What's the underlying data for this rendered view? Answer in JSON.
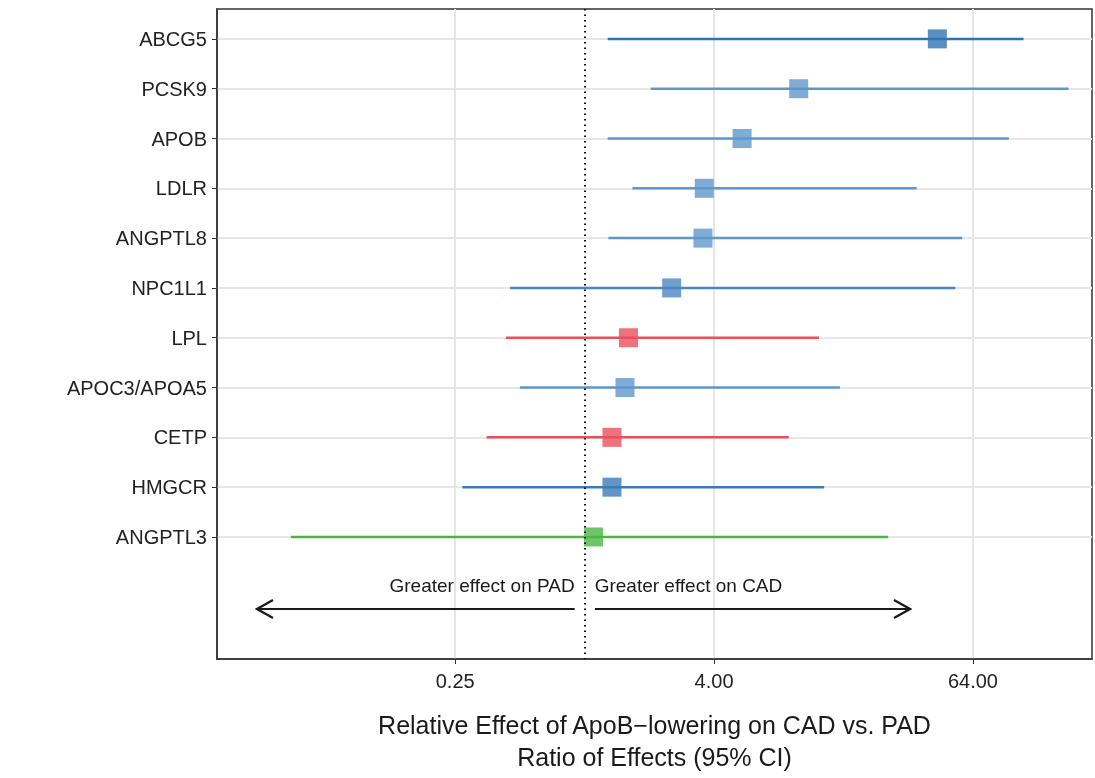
{
  "chart_data": {
    "type": "scatter",
    "orientation": "horizontal",
    "xlabel": "Relative Effect of ApoB−lowering on CAD vs. PAD\nRatio of Effects (95% CI)",
    "categories": [
      "ABCG5",
      "PCSK9",
      "APOB",
      "LDLR",
      "ANGPTL8",
      "NPC1L1",
      "LPL",
      "APOC3/APOA5",
      "CETP",
      "HMGCR",
      "ANGPTL3"
    ],
    "values": [
      43.7,
      9.9,
      5.4,
      3.6,
      3.55,
      2.54,
      1.6,
      1.54,
      1.34,
      1.34,
      1.1
    ],
    "errors": [
      [
        1.28,
        110
      ],
      [
        2.03,
        178
      ],
      [
        1.28,
        94
      ],
      [
        1.67,
        35
      ],
      [
        1.29,
        57
      ],
      [
        0.45,
        53
      ],
      [
        0.43,
        12.3
      ],
      [
        0.5,
        15.4
      ],
      [
        0.35,
        8.9
      ],
      [
        0.27,
        13
      ],
      [
        0.043,
        25.8
      ]
    ],
    "colors": [
      "#2f74b5",
      "#5e97cc",
      "#5e97cc",
      "#5e97cc",
      "#5e97cc",
      "#4a87c2",
      "#e8505b",
      "#5e97cc",
      "#e8505b",
      "#3a7ab8",
      "#4bb543"
    ],
    "log": "x",
    "xlim": [
      0.0195,
      229
    ],
    "xticks": [
      0.25,
      {
        "value": 4,
        "label": "4.00"
      },
      {
        "value": 64,
        "label": "64.00"
      }
    ],
    "grid": true,
    "marker": "square",
    "ref_lines": [
      {
        "axis": "x",
        "value": 1,
        "label": null,
        "color": "#111111",
        "line_style": "dotted"
      }
    ],
    "annotations": [
      "Greater effect on PAD",
      "Greater effect on CAD"
    ]
  }
}
